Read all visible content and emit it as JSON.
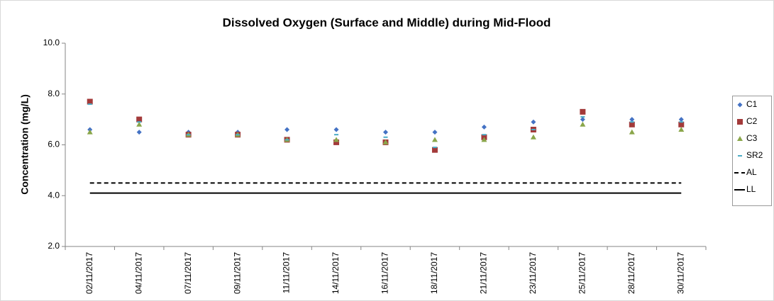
{
  "chart_data": {
    "type": "scatter",
    "title": "Dissolved Oxygen (Surface and Middle) during Mid-Flood",
    "y_label": "Concentration (mg/L)",
    "categories": [
      "02/11/2017",
      "04/11/2017",
      "07/11/2017",
      "09/11/2017",
      "11/11/2017",
      "14/11/2017",
      "16/11/2017",
      "18/11/2017",
      "21/11/2017",
      "23/11/2017",
      "25/11/2017",
      "28/11/2017",
      "30/11/2017"
    ],
    "series": [
      {
        "name": "C1",
        "color": "#4472c4",
        "marker": "diamond",
        "values": [
          6.6,
          6.5,
          6.5,
          6.5,
          6.6,
          6.6,
          6.5,
          6.5,
          6.7,
          6.9,
          7.0,
          7.0,
          7.0
        ]
      },
      {
        "name": "C2",
        "color": "#a33a3a",
        "marker": "square",
        "values": [
          7.7,
          7.0,
          6.4,
          6.4,
          6.2,
          6.1,
          6.1,
          5.8,
          6.3,
          6.6,
          7.3,
          6.8,
          6.8
        ]
      },
      {
        "name": "C3",
        "color": "#8aa64a",
        "marker": "triangle",
        "values": [
          6.5,
          6.8,
          6.4,
          6.4,
          6.2,
          6.2,
          6.1,
          6.2,
          6.2,
          6.3,
          6.8,
          6.5,
          6.6
        ]
      },
      {
        "name": "SR2",
        "color": "#4bacc6",
        "marker": "dash",
        "values": [
          7.6,
          6.9,
          6.4,
          6.4,
          6.2,
          6.4,
          6.3,
          5.9,
          6.4,
          6.6,
          7.1,
          6.9,
          6.9
        ]
      },
      {
        "name": "AL",
        "color": "#000000",
        "marker": "dashed-line",
        "values": [
          4.5,
          4.5,
          4.5,
          4.5,
          4.5,
          4.5,
          4.5,
          4.5,
          4.5,
          4.5,
          4.5,
          4.5,
          4.5
        ]
      },
      {
        "name": "LL",
        "color": "#000000",
        "marker": "solid-line",
        "values": [
          4.1,
          4.1,
          4.1,
          4.1,
          4.1,
          4.1,
          4.1,
          4.1,
          4.1,
          4.1,
          4.1,
          4.1,
          4.1
        ]
      }
    ],
    "ylim": [
      2,
      10
    ],
    "yticks": [
      {
        "value": 2,
        "label": "2.0"
      },
      {
        "value": 4,
        "label": "4.0"
      },
      {
        "value": 6,
        "label": "6.0"
      },
      {
        "value": 8,
        "label": "8.0"
      },
      {
        "value": 10,
        "label": "10.0"
      }
    ],
    "grid": false,
    "legend": "right"
  }
}
